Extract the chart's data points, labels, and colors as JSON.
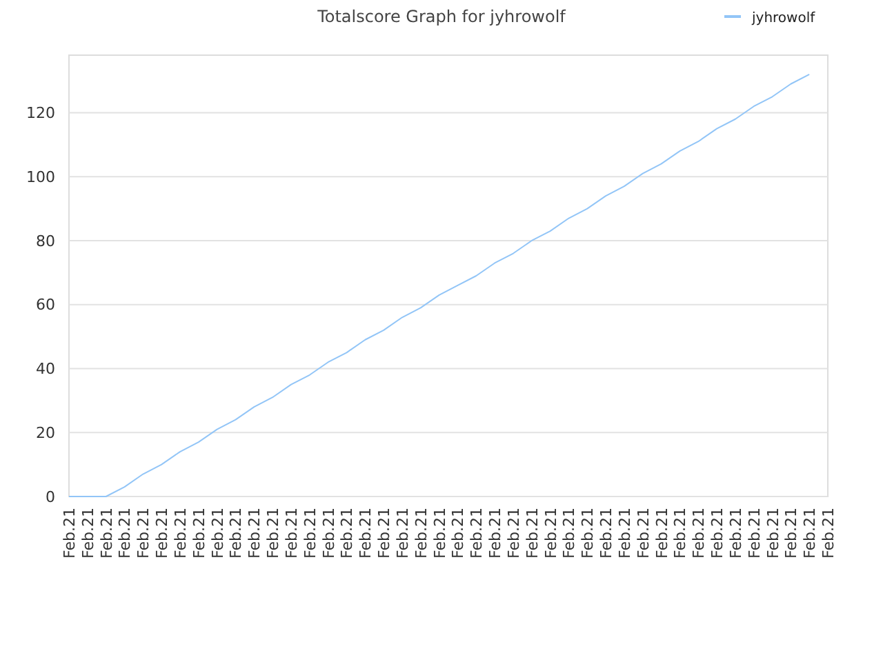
{
  "chart_data": {
    "type": "line",
    "title": "Totalscore Graph for jyhrowolf",
    "categories": [
      "Feb.21",
      "Feb.21",
      "Feb.21",
      "Feb.21",
      "Feb.21",
      "Feb.21",
      "Feb.21",
      "Feb.21",
      "Feb.21",
      "Feb.21",
      "Feb.21",
      "Feb.21",
      "Feb.21",
      "Feb.21",
      "Feb.21",
      "Feb.21",
      "Feb.21",
      "Feb.21",
      "Feb.21",
      "Feb.21",
      "Feb.21",
      "Feb.21",
      "Feb.21",
      "Feb.21",
      "Feb.21",
      "Feb.21",
      "Feb.21",
      "Feb.21",
      "Feb.21",
      "Feb.21",
      "Feb.21",
      "Feb.21",
      "Feb.21",
      "Feb.21",
      "Feb.21",
      "Feb.21",
      "Feb.21",
      "Feb.21",
      "Feb.21",
      "Feb.21",
      "Feb.21",
      "Feb.21"
    ],
    "series": [
      {
        "name": "jyhrowolf",
        "color": "#92c5f7",
        "values": [
          0,
          0,
          0,
          3,
          7,
          10,
          14,
          17,
          21,
          24,
          28,
          31,
          35,
          38,
          42,
          45,
          49,
          52,
          56,
          59,
          63,
          66,
          69,
          73,
          76,
          80,
          83,
          87,
          90,
          94,
          97,
          101,
          104,
          108,
          111,
          115,
          118,
          122,
          125,
          129,
          132,
          null
        ]
      }
    ],
    "ylim": [
      0,
      138
    ],
    "yticks": [
      0,
      20,
      40,
      60,
      80,
      100,
      120
    ],
    "grid": "y",
    "legend": "top right",
    "marker": "none",
    "line_style": "solid"
  }
}
